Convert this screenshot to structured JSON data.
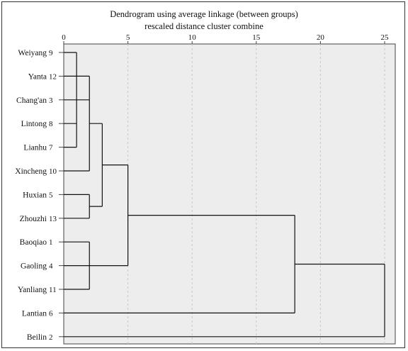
{
  "chart_data": {
    "type": "dendrogram",
    "title": "Dendrogram using average linkage (between groups)",
    "subtitle": "rescaled distance cluster combine",
    "xlim": [
      0,
      25
    ],
    "x_ticks": [
      "0",
      "5",
      "10",
      "15",
      "20",
      "25"
    ],
    "x_tick_values": [
      0,
      5,
      10,
      15,
      20,
      25
    ],
    "grid": true,
    "leaves": [
      {
        "name": "Weiyang",
        "id": "9"
      },
      {
        "name": "Yanta",
        "id": "12"
      },
      {
        "name": "Chang'an",
        "id": "3"
      },
      {
        "name": "Lintong",
        "id": "8"
      },
      {
        "name": "Lianhu",
        "id": "7"
      },
      {
        "name": "Xincheng",
        "id": "10"
      },
      {
        "name": "Huxian",
        "id": "5"
      },
      {
        "name": "Zhouzhi",
        "id": "13"
      },
      {
        "name": "Baoqiao",
        "id": "1"
      },
      {
        "name": "Gaoling",
        "id": "4"
      },
      {
        "name": "Yanliang",
        "id": "11"
      },
      {
        "name": "Lantian",
        "id": "6"
      },
      {
        "name": "Beilin",
        "id": "2"
      }
    ],
    "merges": [
      {
        "id": "m1",
        "children": [
          "L0",
          "L2",
          "L3",
          "L4"
        ],
        "distance": 1
      },
      {
        "id": "m2",
        "children": [
          "L1",
          "m1",
          "L5"
        ],
        "distance": 2
      },
      {
        "id": "m3",
        "children": [
          "L6",
          "L7"
        ],
        "distance": 2
      },
      {
        "id": "m4",
        "children": [
          "L8",
          "L9",
          "L10"
        ],
        "distance": 2
      },
      {
        "id": "m5",
        "children": [
          "m2",
          "m3"
        ],
        "distance": 3
      },
      {
        "id": "m6",
        "children": [
          "m5",
          "m4"
        ],
        "distance": 5
      },
      {
        "id": "m7",
        "children": [
          "m6",
          "L11"
        ],
        "distance": 18
      },
      {
        "id": "m8",
        "children": [
          "m7",
          "L12"
        ],
        "distance": 25
      }
    ],
    "colors": {
      "plot_bg": "#ededed",
      "line": "#111111",
      "grid": "#c8c8c8"
    }
  }
}
